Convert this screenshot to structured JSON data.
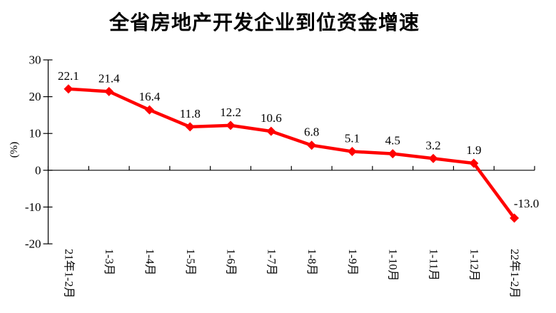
{
  "page": {
    "background": "#ffffff",
    "text_color": "#000000"
  },
  "chart_data": {
    "type": "line",
    "title": "全省房地产开发企业到位资金增速",
    "xlabel": "",
    "ylabel": "(%)",
    "categories": [
      "21年1-2月",
      "1-3月",
      "1-4月",
      "1-5月",
      "1-6月",
      "1-7月",
      "1-8月",
      "1-9月",
      "1-10月",
      "1-11月",
      "1-12月",
      "22年1-2月"
    ],
    "values": [
      22.1,
      21.4,
      16.4,
      11.8,
      12.2,
      10.6,
      6.8,
      5.1,
      4.5,
      3.2,
      1.9,
      -13.0
    ],
    "ylim": [
      -20,
      30
    ],
    "yticks": [
      30,
      20,
      10,
      0,
      -10,
      -20
    ],
    "grid": false,
    "legend_position": "none",
    "data_labels": true,
    "x_tick_label_rotation_deg": 90,
    "line_color": "#ff0000",
    "marker": "diamond",
    "axis_color": "#000000",
    "label_color": "#000000"
  }
}
